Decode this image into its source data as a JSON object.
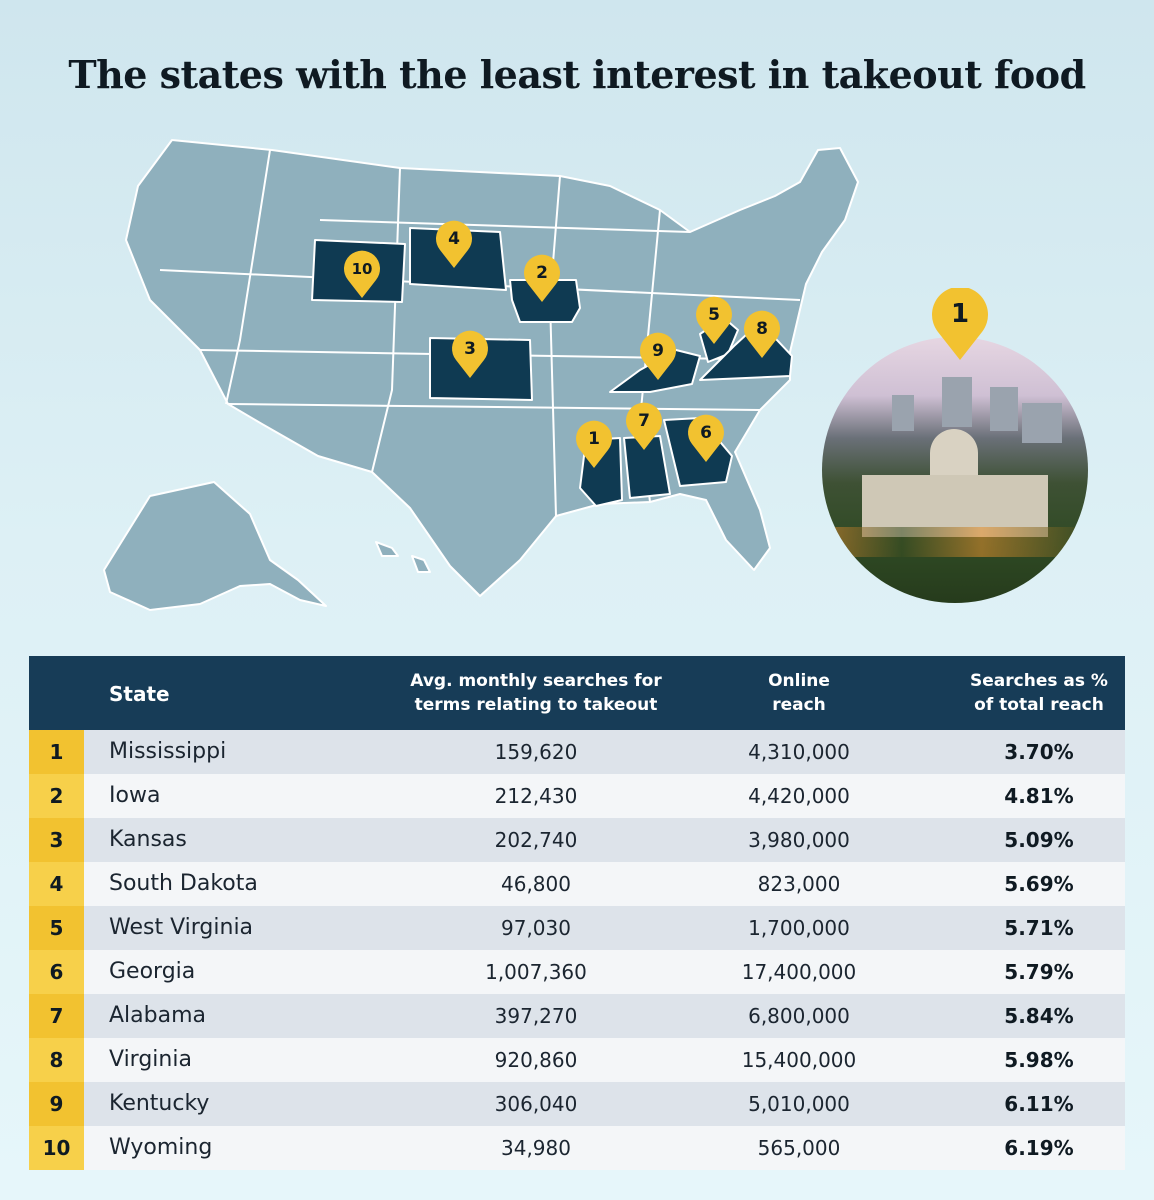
{
  "title": "The states with the least interest in takeout food",
  "colors": {
    "land": "#8fb0bd",
    "highlight": "#0f3a52",
    "pin": "#f2c230",
    "header": "#173c57"
  },
  "map": {
    "highlighted_states": [
      {
        "rank": "1",
        "state": "Mississippi"
      },
      {
        "rank": "2",
        "state": "Iowa"
      },
      {
        "rank": "3",
        "state": "Kansas"
      },
      {
        "rank": "4",
        "state": "South Dakota"
      },
      {
        "rank": "5",
        "state": "West Virginia"
      },
      {
        "rank": "6",
        "state": "Georgia"
      },
      {
        "rank": "7",
        "state": "Alabama"
      },
      {
        "rank": "8",
        "state": "Virginia"
      },
      {
        "rank": "9",
        "state": "Kentucky"
      },
      {
        "rank": "10",
        "state": "Wyoming"
      }
    ],
    "photo_pin": "1",
    "photo_icon": "mississippi-capitol-photo"
  },
  "table": {
    "headers": {
      "state": "State",
      "searches_line1": "Avg. monthly searches for",
      "searches_line2": "terms relating to takeout",
      "reach_line1": "Online",
      "reach_line2": "reach",
      "pct_line1": "Searches as %",
      "pct_line2": "of total reach"
    },
    "rows": [
      {
        "rank": "1",
        "state": "Mississippi",
        "searches": "159,620",
        "reach": "4,310,000",
        "pct": "3.70%"
      },
      {
        "rank": "2",
        "state": "Iowa",
        "searches": "212,430",
        "reach": "4,420,000",
        "pct": "4.81%"
      },
      {
        "rank": "3",
        "state": "Kansas",
        "searches": "202,740",
        "reach": "3,980,000",
        "pct": "5.09%"
      },
      {
        "rank": "4",
        "state": "South Dakota",
        "searches": "46,800",
        "reach": "823,000",
        "pct": "5.69%"
      },
      {
        "rank": "5",
        "state": "West Virginia",
        "searches": "97,030",
        "reach": "1,700,000",
        "pct": "5.71%"
      },
      {
        "rank": "6",
        "state": "Georgia",
        "searches": "1,007,360",
        "reach": "17,400,000",
        "pct": "5.79%"
      },
      {
        "rank": "7",
        "state": "Alabama",
        "searches": "397,270",
        "reach": "6,800,000",
        "pct": "5.84%"
      },
      {
        "rank": "8",
        "state": "Virginia",
        "searches": "920,860",
        "reach": "15,400,000",
        "pct": "5.98%"
      },
      {
        "rank": "9",
        "state": "Kentucky",
        "searches": "306,040",
        "reach": "5,010,000",
        "pct": "6.11%"
      },
      {
        "rank": "10",
        "state": "Wyoming",
        "searches": "34,980",
        "reach": "565,000",
        "pct": "6.19%"
      }
    ]
  }
}
